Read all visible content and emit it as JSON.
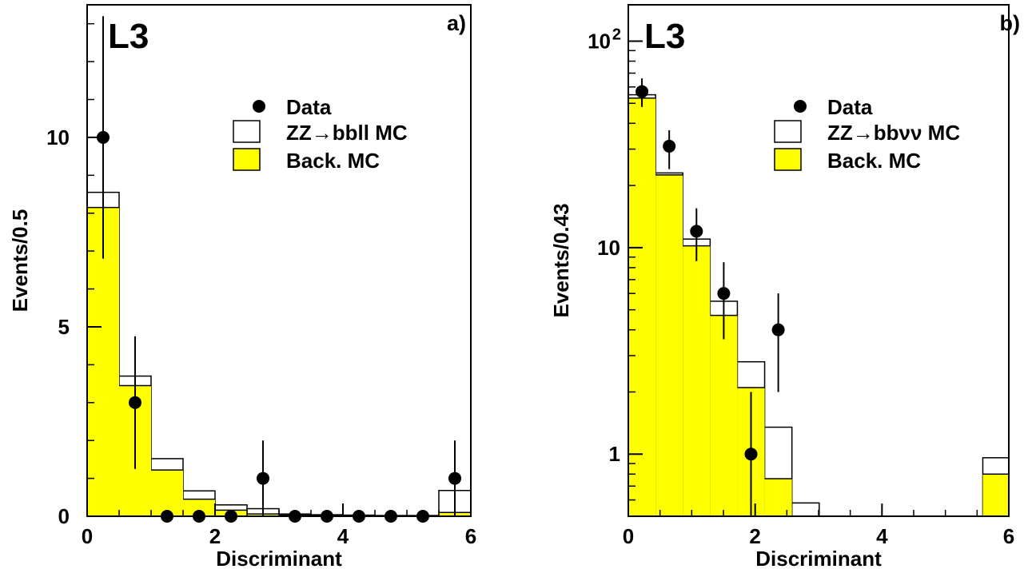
{
  "colors": {
    "data_marker": "#000000",
    "signal_fill": "#ffffff",
    "background_fill": "#ffff00",
    "frame": "#000000"
  },
  "chart_data": [
    {
      "type": "histogram",
      "panel_label": "a)",
      "experiment_label": "L3",
      "xlabel": "Discriminant",
      "ylabel": "Events/0.5",
      "xlim": [
        0,
        6
      ],
      "ylim": [
        0,
        13.5
      ],
      "yscale": "linear",
      "xticks": [
        "0",
        "2",
        "4",
        "6"
      ],
      "yticks": [
        "0",
        "5",
        "10"
      ],
      "legend": {
        "placement": "upper-right",
        "entries": {
          "data": "Data",
          "signal_prefix": "ZZ",
          "signal_arrow": "→",
          "signal_suffix": "bbll MC",
          "background": "Back. MC"
        }
      },
      "bin_edges": [
        0,
        0.5,
        1.0,
        1.5,
        2.0,
        2.5,
        3.0,
        3.5,
        4.0,
        4.5,
        5.0,
        5.5,
        6.0
      ],
      "series": [
        {
          "name": "ZZ→bbll MC",
          "kind": "stacked_total",
          "values": [
            8.55,
            3.7,
            1.52,
            0.67,
            0.3,
            0.2,
            0.06,
            0.04,
            0.03,
            0.02,
            0.02,
            0.68
          ]
        },
        {
          "name": "Back. MC",
          "kind": "background",
          "values": [
            8.15,
            3.45,
            1.22,
            0.45,
            0.16,
            0.06,
            0.03,
            0.02,
            0.02,
            0.01,
            0.01,
            0.1
          ]
        },
        {
          "name": "Data",
          "kind": "points",
          "x": [
            0.25,
            0.75,
            1.25,
            1.75,
            2.25,
            2.75,
            3.25,
            3.75,
            4.25,
            4.75,
            5.25,
            5.75
          ],
          "y": [
            10,
            3,
            0,
            0,
            0,
            1,
            0,
            0,
            0,
            0,
            0,
            1
          ],
          "err_low": [
            3.2,
            1.75,
            0,
            0,
            0,
            1,
            0,
            0,
            0,
            0,
            0,
            1
          ],
          "err_high": [
            3.2,
            1.75,
            0,
            0,
            0,
            1,
            0,
            0,
            0,
            0,
            0,
            1
          ]
        }
      ]
    },
    {
      "type": "histogram",
      "panel_label": "b)",
      "experiment_label": "L3",
      "xlabel": "Discriminant",
      "ylabel": "Events/0.43",
      "xlim": [
        0,
        6
      ],
      "ylim": [
        0.5,
        150
      ],
      "yscale": "log",
      "xticks": [
        "0",
        "2",
        "4",
        "6"
      ],
      "yticks": [
        {
          "value": 1,
          "label": "1"
        },
        {
          "value": 10,
          "label": "10"
        },
        {
          "value": 100,
          "label": "10",
          "exponent": "2"
        }
      ],
      "legend": {
        "placement": "upper-right",
        "entries": {
          "data": "Data",
          "signal_prefix": "ZZ",
          "signal_arrow": "→",
          "signal_suffix": "bbνν MC",
          "background": "Back. MC"
        }
      },
      "bin_edges": [
        0,
        0.43,
        0.86,
        1.29,
        1.72,
        2.15,
        2.58,
        3.01,
        3.44,
        3.87,
        4.3,
        4.73,
        5.16,
        5.59,
        6.0
      ],
      "series": [
        {
          "name": "ZZ→bbνν MC",
          "kind": "stacked_total",
          "values": [
            55,
            23,
            11,
            5.5,
            2.8,
            1.35,
            0.58,
            0.5,
            0.5,
            0.5,
            0.5,
            0.5,
            0.5,
            0.96
          ]
        },
        {
          "name": "Back. MC",
          "kind": "background",
          "values": [
            53,
            22.5,
            10.2,
            4.7,
            2.1,
            0.76,
            0.5,
            0.5,
            0.5,
            0.5,
            0.5,
            0.5,
            0.5,
            0.8
          ]
        },
        {
          "name": "Data",
          "kind": "points",
          "x": [
            0.215,
            0.645,
            1.075,
            1.505,
            1.935,
            2.365
          ],
          "y": [
            57,
            31,
            12,
            6,
            1,
            4
          ],
          "err_low": [
            9,
            7,
            3.4,
            2.4,
            1,
            2
          ],
          "err_high": [
            9,
            6,
            3.5,
            2.5,
            1,
            2
          ]
        }
      ]
    }
  ]
}
